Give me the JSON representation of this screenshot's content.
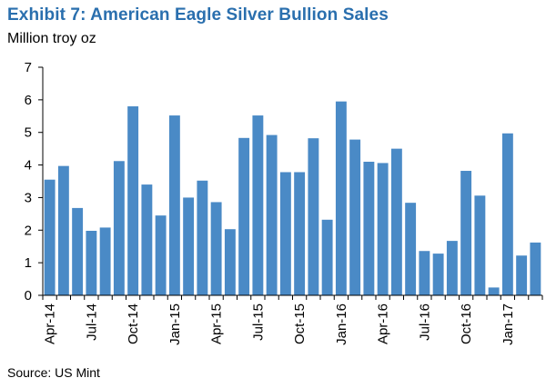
{
  "header": {
    "title": "Exhibit 7: American Eagle Silver Bullion Sales",
    "unit": "Million troy oz"
  },
  "footer": {
    "source": "Source: US Mint"
  },
  "colors": {
    "title": "#2a6fae",
    "bar": "#4a8ac6",
    "axis": "#000000"
  },
  "chart_data": {
    "type": "bar",
    "title": "Exhibit 7: American Eagle Silver Bullion Sales",
    "ylabel": "Million troy oz",
    "xlabel": "",
    "ylim": [
      0,
      7
    ],
    "yticks": [
      0,
      1,
      2,
      3,
      4,
      5,
      6,
      7
    ],
    "grid": false,
    "categories": [
      "Apr-14",
      "May-14",
      "Jun-14",
      "Jul-14",
      "Aug-14",
      "Sep-14",
      "Oct-14",
      "Nov-14",
      "Dec-14",
      "Jan-15",
      "Feb-15",
      "Mar-15",
      "Apr-15",
      "May-15",
      "Jun-15",
      "Jul-15",
      "Aug-15",
      "Sep-15",
      "Oct-15",
      "Nov-15",
      "Dec-15",
      "Jan-16",
      "Feb-16",
      "Mar-16",
      "Apr-16",
      "May-16",
      "Jun-16",
      "Jul-16",
      "Aug-16",
      "Sep-16",
      "Oct-16",
      "Nov-16",
      "Dec-16",
      "Jan-17",
      "Feb-17",
      "Mar-17"
    ],
    "tick_labels": [
      "Apr-14",
      "Jul-14",
      "Oct-14",
      "Jan-15",
      "Apr-15",
      "Jul-15",
      "Oct-15",
      "Jan-16",
      "Apr-16",
      "Jul-16",
      "Oct-16",
      "Jan-17"
    ],
    "values": [
      3.55,
      3.97,
      2.68,
      1.98,
      2.08,
      4.12,
      5.8,
      3.4,
      2.45,
      5.52,
      3.0,
      3.52,
      2.86,
      2.03,
      4.83,
      5.52,
      4.92,
      3.78,
      3.78,
      4.82,
      2.32,
      5.95,
      4.78,
      4.1,
      4.06,
      4.5,
      2.84,
      1.36,
      1.28,
      1.67,
      3.82,
      3.06,
      0.24,
      4.97,
      1.22,
      1.62
    ]
  }
}
